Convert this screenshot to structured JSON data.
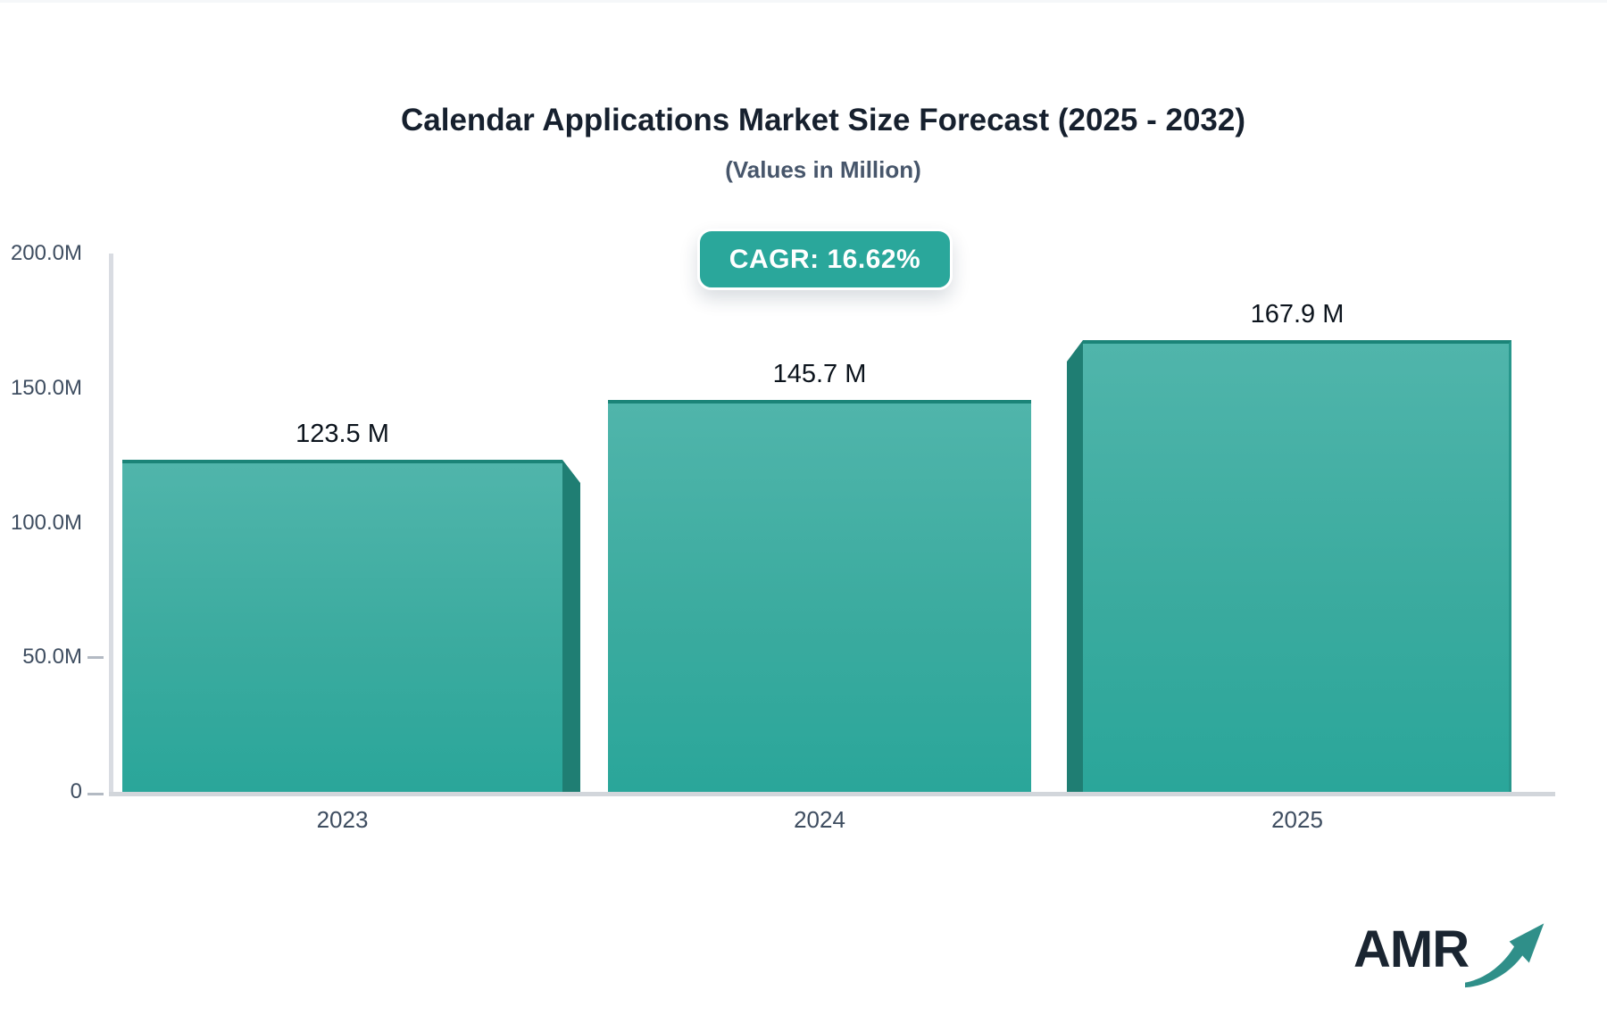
{
  "title": "Calendar Applications Market Size Forecast (2025 - 2032)",
  "subtitle": "(Values in Million)",
  "badge": {
    "label": "CAGR: 16.62%"
  },
  "logo": {
    "text": "AMR",
    "icon": "growth-arrow-icon"
  },
  "colors": {
    "accent_teal": "#2aa79b",
    "bar_gradient_top": "#50b5ab",
    "bar_gradient_bottom": "#2aa69a",
    "bar_side_face": "#1f7e73",
    "bar_top_edge": "#1b8478",
    "axis_gray": "#d5d8de",
    "text_dark": "#16202e",
    "text_slate": "#3e4d60"
  },
  "chart_data": {
    "type": "bar",
    "categories": [
      "2023",
      "2024",
      "2025"
    ],
    "values": [
      123.5,
      145.7,
      167.9
    ],
    "value_labels": [
      "123.5 M",
      "145.7 M",
      "167.9 M"
    ],
    "unit": "Million",
    "title": "Calendar Applications Market Size Forecast (2025 - 2032)",
    "subtitle": "(Values in Million)",
    "cagr": "16.62%",
    "xlabel": "",
    "ylabel": "",
    "ylim": [
      0,
      200
    ],
    "ytick_labels": [
      "200.0M",
      "150.0M",
      "100.0M",
      "50.0M",
      "0"
    ],
    "grid": false,
    "legend": false,
    "bar_style": "pseudo-3d teal gradient, side extrusion right on first bar, left on last bar"
  }
}
